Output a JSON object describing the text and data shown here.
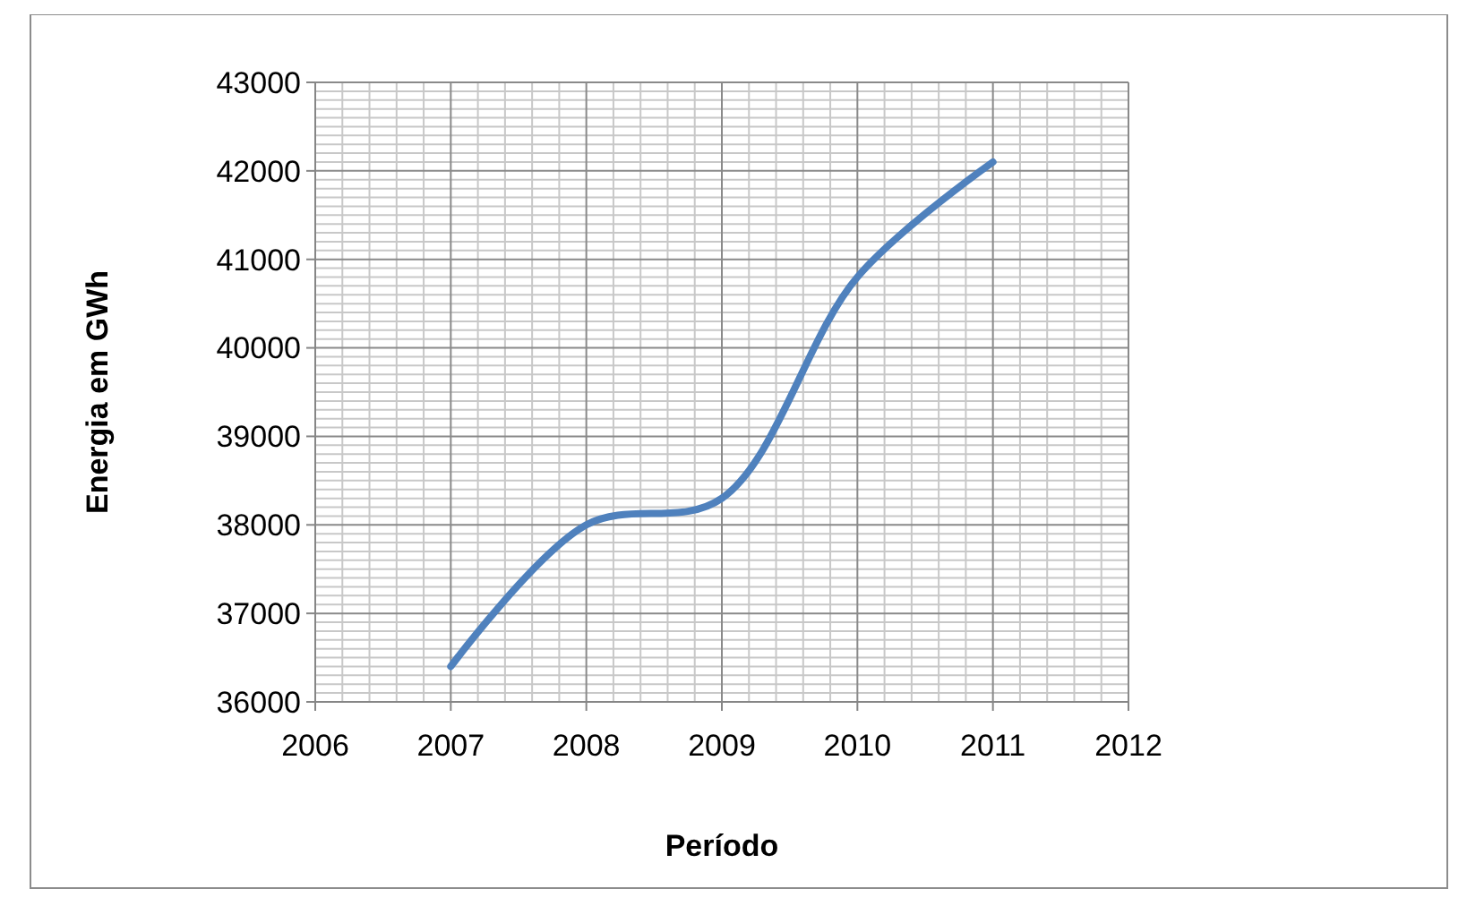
{
  "chart_data": {
    "type": "line",
    "xlabel": "Período",
    "ylabel": "Energia em GWh",
    "x": [
      2007,
      2008,
      2009,
      2010,
      2011
    ],
    "series": [
      {
        "color": "#4f81bd",
        "values": [
          36400,
          38000,
          38300,
          40800,
          42100
        ]
      }
    ],
    "xlim": [
      2006,
      2012
    ],
    "xticks": [
      2006,
      2007,
      2008,
      2009,
      2010,
      2011,
      2012
    ],
    "ylim": [
      36000,
      43000
    ],
    "yticks": [
      36000,
      37000,
      38000,
      39000,
      40000,
      41000,
      42000,
      43000
    ],
    "grid": true,
    "marker": "none",
    "line_style": "solid"
  }
}
